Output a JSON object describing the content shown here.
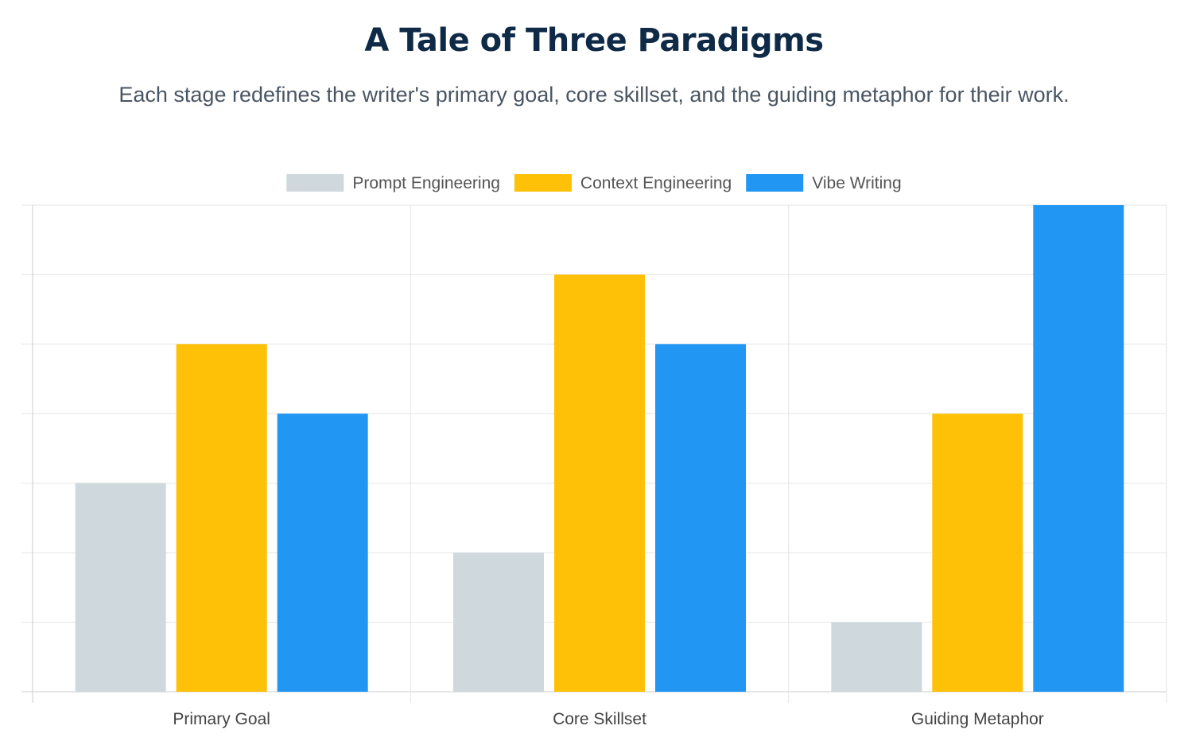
{
  "header": {
    "title": "A Tale of Three Paradigms",
    "subtitle": "Each stage redefines the writer's primary goal, core skillset, and the guiding metaphor for their work."
  },
  "colors": {
    "title": "#0f2a47",
    "grid": "#e5e5e5",
    "axis": "#cccccc"
  },
  "chart_data": {
    "type": "bar",
    "categories": [
      "Primary Goal",
      "Core Skillset",
      "Guiding Metaphor"
    ],
    "series": [
      {
        "name": "Prompt Engineering",
        "color": "#cfd8dc",
        "values": [
          3,
          2,
          1
        ]
      },
      {
        "name": "Context Engineering",
        "color": "#ffc107",
        "values": [
          5,
          6,
          4
        ]
      },
      {
        "name": "Vibe Writing",
        "color": "#2196f3",
        "values": [
          4,
          5,
          7
        ]
      }
    ],
    "ylim": [
      0,
      7
    ],
    "grid": true,
    "legend": "top-center",
    "xlabel": "",
    "ylabel": ""
  }
}
